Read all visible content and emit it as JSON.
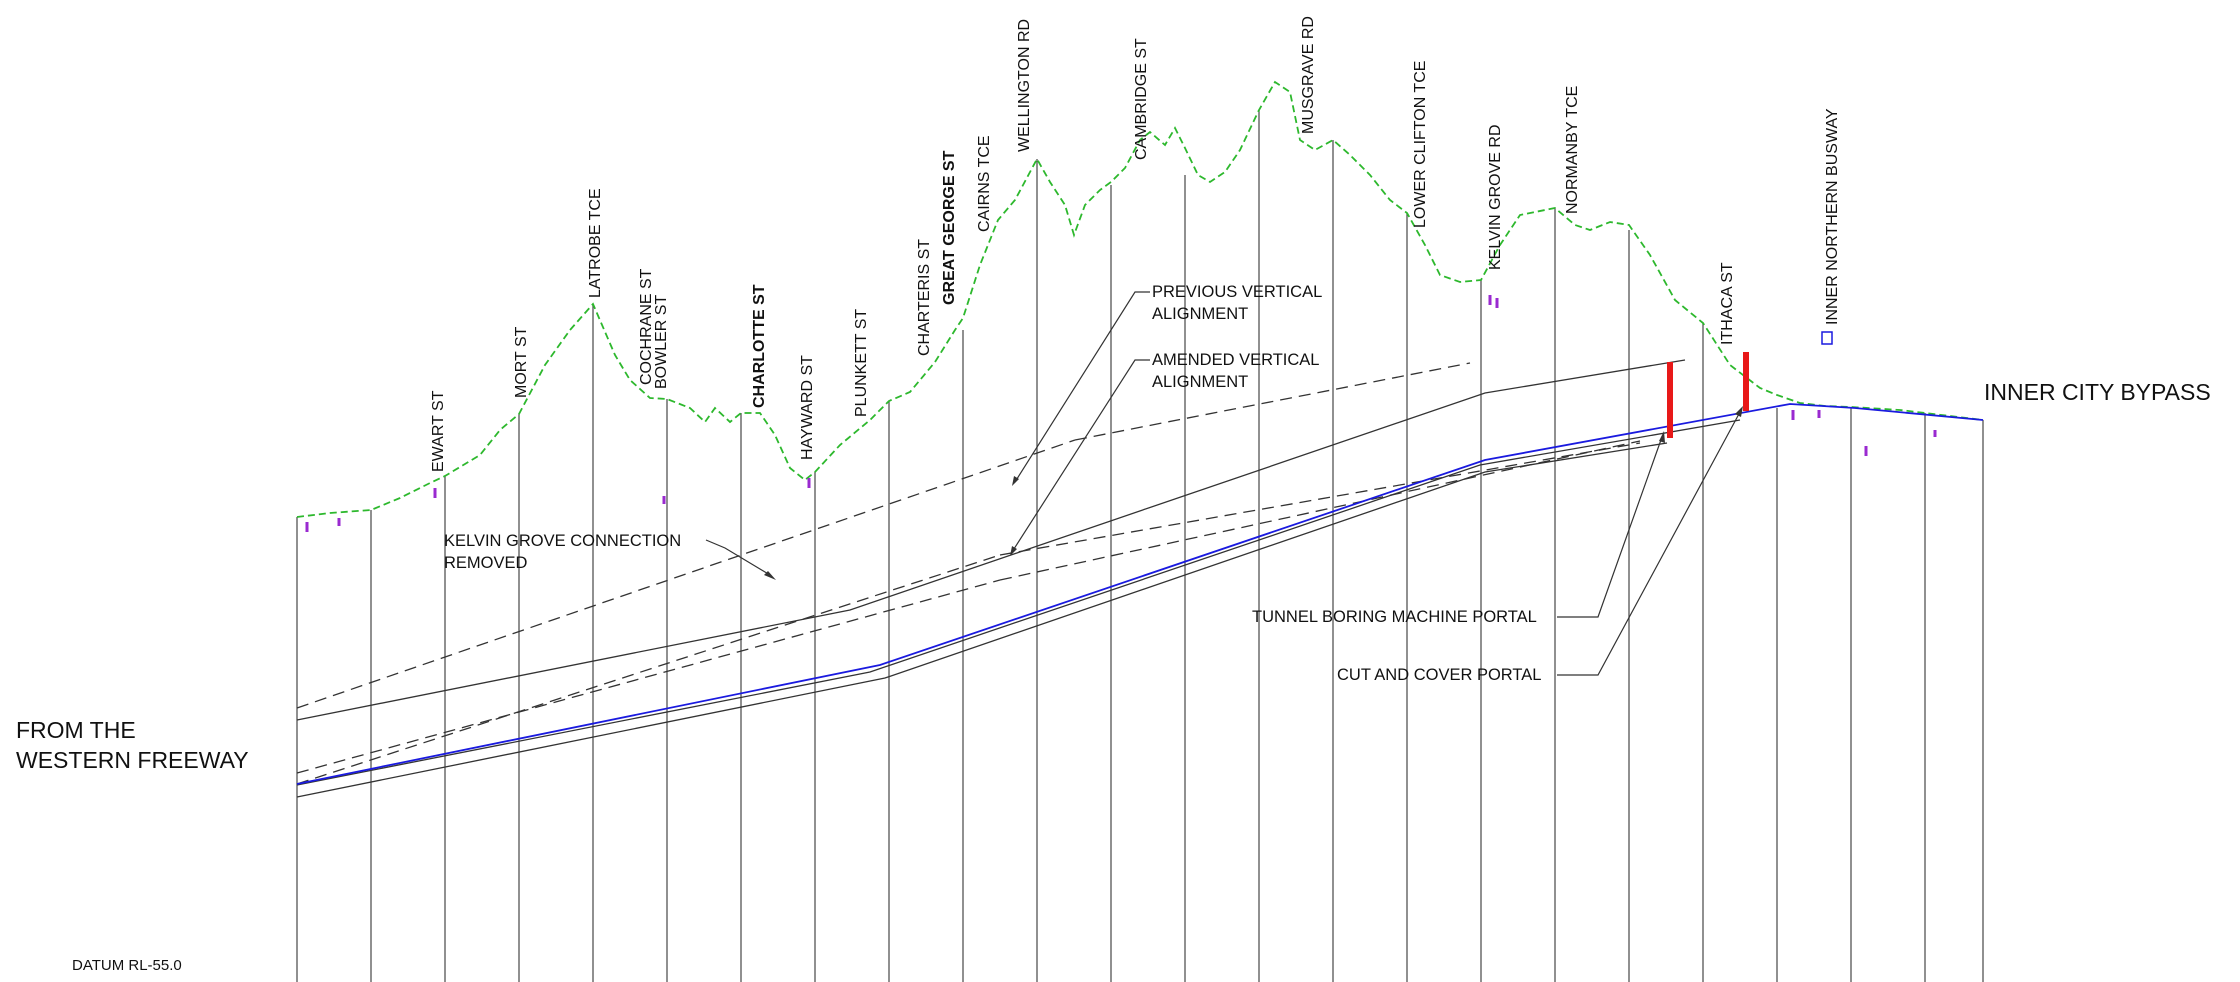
{
  "labels": {
    "from": [
      "FROM THE",
      "WESTERN FREEWAY"
    ],
    "to": "INNER CITY BYPASS",
    "datum": "DATUM RL-55.0",
    "kelvin_grove": [
      "KELVIN GROVE CONNECTION",
      "REMOVED"
    ],
    "previous": [
      "PREVIOUS VERTICAL",
      "ALIGNMENT"
    ],
    "amended": [
      "AMENDED VERTICAL",
      "ALIGNMENT"
    ],
    "tbm_portal": "TUNNEL BORING MACHINE PORTAL",
    "cut_cover_portal": "CUT AND COVER PORTAL"
  },
  "streets": [
    "EWART ST",
    "MORT ST",
    "LATROBE TCE",
    "COCHRANE ST",
    "BOWLER ST",
    "CHARLOTTE ST",
    "HAYWARD ST",
    "PLUNKETT ST",
    "CHARTERIS ST",
    "GREAT GEORGE ST",
    "CAIRNS TCE",
    "WELLINGTON RD",
    "CAMBRIDGE ST",
    "MUSGRAVE RD",
    "LOWER CLIFTON TCE",
    "KELVIN GROVE RD",
    "NORMANBY TCE",
    "ITHACA ST",
    "INNER NORTHERN BUSWAY"
  ],
  "colors": {
    "ground": "#2db82d",
    "amended": "#1a1adf",
    "portal": "#e81818",
    "lines": "#333333",
    "marks": "#9a2ad0"
  }
}
